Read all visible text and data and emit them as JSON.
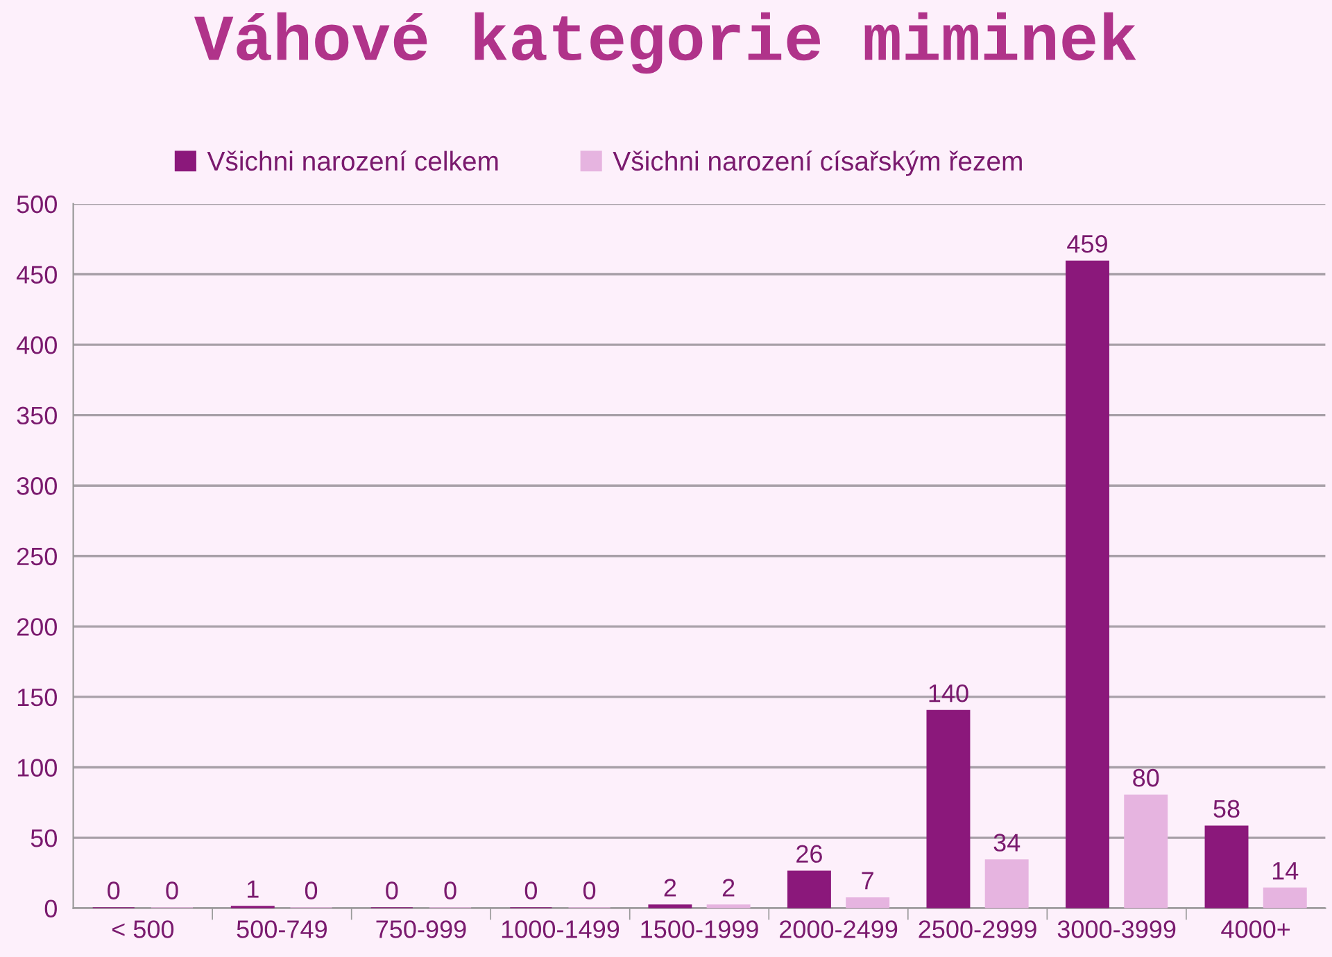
{
  "chart_data": {
    "type": "bar",
    "title": "Váhové kategorie miminek",
    "categories": [
      "< 500",
      "500-749",
      "750-999",
      "1000-1499",
      "1500-1999",
      "2000-2499",
      "2500-2999",
      "3000-3999",
      "4000+"
    ],
    "series": [
      {
        "name": "Všichni narození celkem",
        "color": "#8b187b",
        "values": [
          0,
          1,
          0,
          0,
          2,
          26,
          140,
          459,
          58
        ]
      },
      {
        "name": "Všichni narození císařským řezem",
        "color": "#e6b4e0",
        "values": [
          0,
          0,
          0,
          0,
          2,
          7,
          34,
          80,
          14
        ]
      }
    ],
    "ylim": [
      0,
      500
    ],
    "yticks": [
      0,
      50,
      100,
      150,
      200,
      250,
      300,
      350,
      400,
      450,
      500
    ],
    "grid": "y",
    "legend": "top",
    "data_labels": true
  }
}
